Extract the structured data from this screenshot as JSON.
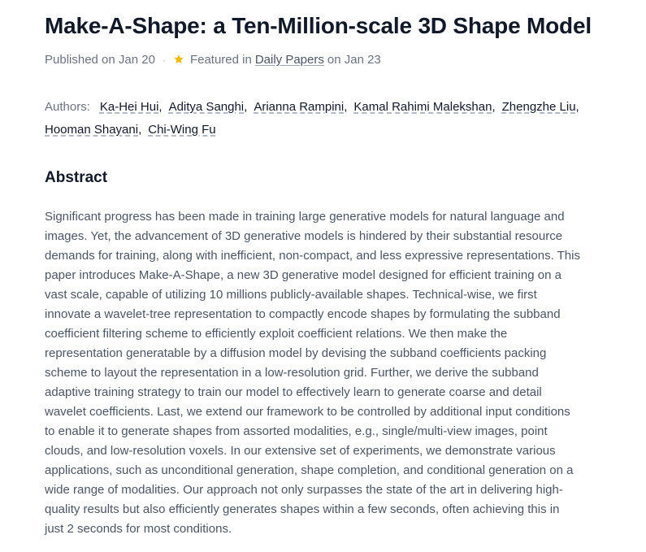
{
  "paper": {
    "title": "Make-A-Shape: a Ten-Million-scale 3D Shape Model",
    "published": "Published on Jan 20",
    "featured_prefix": "Featured in",
    "featured_link": "Daily Papers",
    "featured_suffix": "on Jan 23",
    "star_icon": "star-icon",
    "star_color": "#f5b800"
  },
  "authors": {
    "label": "Authors:",
    "list": [
      "Ka-Hei Hui",
      "Aditya Sanghi",
      "Arianna Rampini",
      "Kamal Rahimi Malekshan",
      "Zhengzhe Liu",
      "Hooman Shayani",
      "Chi-Wing Fu"
    ]
  },
  "abstract": {
    "heading": "Abstract",
    "text": "Significant progress has been made in training large generative models for natural language and images. Yet, the advancement of 3D generative models is hindered by their substantial resource demands for training, along with inefficient, non-compact, and less expressive representations. This paper introduces Make-A-Shape, a new 3D generative model designed for efficient training on a vast scale, capable of utilizing 10 millions publicly-available shapes. Technical-wise, we first innovate a wavelet-tree representation to compactly encode shapes by formulating the subband coefficient filtering scheme to efficiently exploit coefficient relations. We then make the representation generatable by a diffusion model by devising the subband coefficients packing scheme to layout the representation in a low-resolution grid. Further, we derive the subband adaptive training strategy to train our model to effectively learn to generate coarse and detail wavelet coefficients. Last, we extend our framework to be controlled by additional input conditions to enable it to generate shapes from assorted modalities, e.g., single/multi-view images, point clouds, and low-resolution voxels. In our extensive set of experiments, we demonstrate various applications, such as unconditional generation, shape completion, and conditional generation on a wide range of modalities. Our approach not only surpasses the state of the art in delivering high-quality results but also efficiently generates shapes within a few seconds, often achieving this in just 2 seconds for most conditions."
  }
}
